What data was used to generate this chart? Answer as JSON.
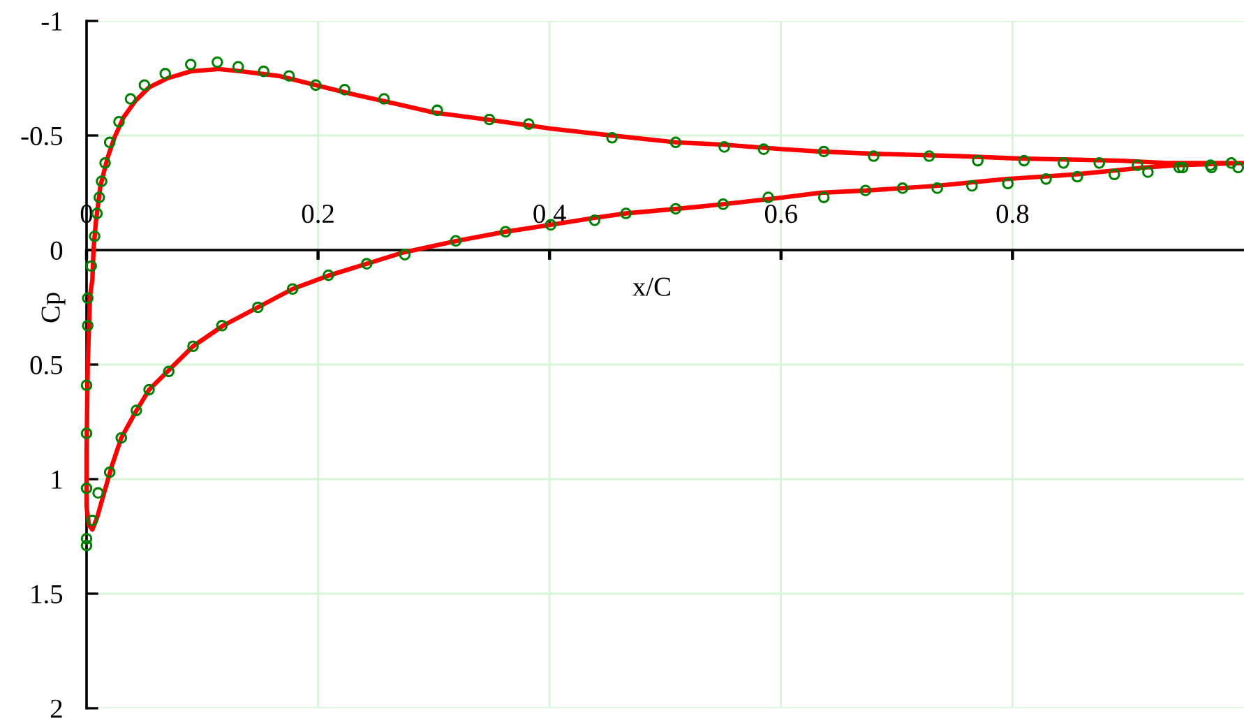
{
  "chart_data": {
    "type": "line",
    "xlabel": "x/C",
    "ylabel": "Cp",
    "xlim": [
      0,
      1
    ],
    "ylim": [
      2,
      -1
    ],
    "xticks": [
      0,
      0.2,
      0.4,
      0.6,
      0.8
    ],
    "yticks": [
      -1,
      -0.5,
      0,
      0.5,
      1,
      1.5,
      2
    ],
    "grid": true,
    "series": [
      {
        "color": "#ff0000",
        "x": [
          0.994,
          0.934,
          0.894,
          0.802,
          0.754,
          0.682,
          0.634,
          0.602,
          0.55,
          0.51,
          0.454,
          0.401,
          0.346,
          0.3,
          0.266,
          0.23,
          0.198,
          0.166,
          0.134,
          0.114,
          0.09,
          0.07,
          0.054,
          0.042,
          0.032,
          0.024,
          0.018,
          0.012,
          0.008,
          0.006,
          0.005,
          0.003,
          0.001,
          0.0,
          0.0,
          0.002,
          0.005,
          0.009,
          0.014,
          0.022,
          0.03,
          0.042,
          0.054,
          0.072,
          0.092,
          0.118,
          0.148,
          0.178,
          0.21,
          0.242,
          0.274,
          0.32,
          0.362,
          0.401,
          0.438,
          0.466,
          0.51,
          0.55,
          0.602,
          0.634,
          0.674,
          0.734,
          0.794,
          0.854,
          0.914,
          0.942,
          1.0
        ],
        "values": [
          -0.38,
          -0.38,
          -0.39,
          -0.4,
          -0.41,
          -0.42,
          -0.43,
          -0.44,
          -0.46,
          -0.47,
          -0.5,
          -0.53,
          -0.57,
          -0.6,
          -0.64,
          -0.68,
          -0.72,
          -0.76,
          -0.78,
          -0.79,
          -0.78,
          -0.75,
          -0.71,
          -0.65,
          -0.58,
          -0.49,
          -0.4,
          -0.28,
          -0.12,
          0.0,
          0.13,
          0.2,
          0.5,
          0.88,
          1.12,
          1.2,
          1.22,
          1.17,
          1.08,
          0.94,
          0.82,
          0.71,
          0.61,
          0.52,
          0.42,
          0.33,
          0.25,
          0.17,
          0.11,
          0.06,
          0.01,
          -0.04,
          -0.08,
          -0.11,
          -0.14,
          -0.16,
          -0.18,
          -0.2,
          -0.23,
          -0.25,
          -0.26,
          -0.28,
          -0.31,
          -0.33,
          -0.36,
          -0.37,
          -0.38
        ]
      },
      {
        "type": "scatter",
        "color": "#008000",
        "marker": "circle",
        "x": [
          0.989,
          0.971,
          0.944,
          0.908,
          0.875,
          0.844,
          0.81,
          0.77,
          0.728,
          0.68,
          0.637,
          0.585,
          0.551,
          0.509,
          0.454,
          0.382,
          0.348,
          0.303,
          0.257,
          0.223,
          0.198,
          0.175,
          0.153,
          0.131,
          0.113,
          0.09,
          0.068,
          0.05,
          0.038,
          0.028,
          0.02,
          0.016,
          0.013,
          0.011,
          0.009,
          0.007,
          0.004,
          0.001,
          0.001,
          0.0,
          0.0,
          0.0,
          0.0,
          0.0,
          0.005,
          0.01,
          0.02,
          0.03,
          0.043,
          0.054,
          0.071,
          0.092,
          0.117,
          0.148,
          0.178,
          0.209,
          0.242,
          0.275,
          0.319,
          0.362,
          0.401,
          0.439,
          0.466,
          0.509,
          0.55,
          0.589,
          0.637,
          0.673,
          0.705,
          0.735,
          0.765,
          0.796,
          0.829,
          0.856,
          0.888,
          0.917,
          0.947,
          0.972,
          0.995
        ],
        "values": [
          -0.38,
          -0.37,
          -0.36,
          -0.37,
          -0.38,
          -0.38,
          -0.39,
          -0.39,
          -0.41,
          -0.41,
          -0.43,
          -0.44,
          -0.45,
          -0.47,
          -0.49,
          -0.55,
          -0.57,
          -0.61,
          -0.66,
          -0.7,
          -0.72,
          -0.76,
          -0.78,
          -0.8,
          -0.82,
          -0.81,
          -0.77,
          -0.72,
          -0.66,
          -0.56,
          -0.47,
          -0.38,
          -0.3,
          -0.23,
          -0.16,
          -0.06,
          0.07,
          0.21,
          0.33,
          0.59,
          0.8,
          1.04,
          1.26,
          1.29,
          1.18,
          1.06,
          0.97,
          0.82,
          0.7,
          0.61,
          0.53,
          0.42,
          0.33,
          0.25,
          0.17,
          0.11,
          0.06,
          0.02,
          -0.04,
          -0.08,
          -0.11,
          -0.13,
          -0.16,
          -0.18,
          -0.2,
          -0.23,
          -0.23,
          -0.26,
          -0.27,
          -0.27,
          -0.28,
          -0.29,
          -0.31,
          -0.32,
          -0.33,
          -0.34,
          -0.36,
          -0.36,
          -0.36
        ]
      }
    ]
  }
}
